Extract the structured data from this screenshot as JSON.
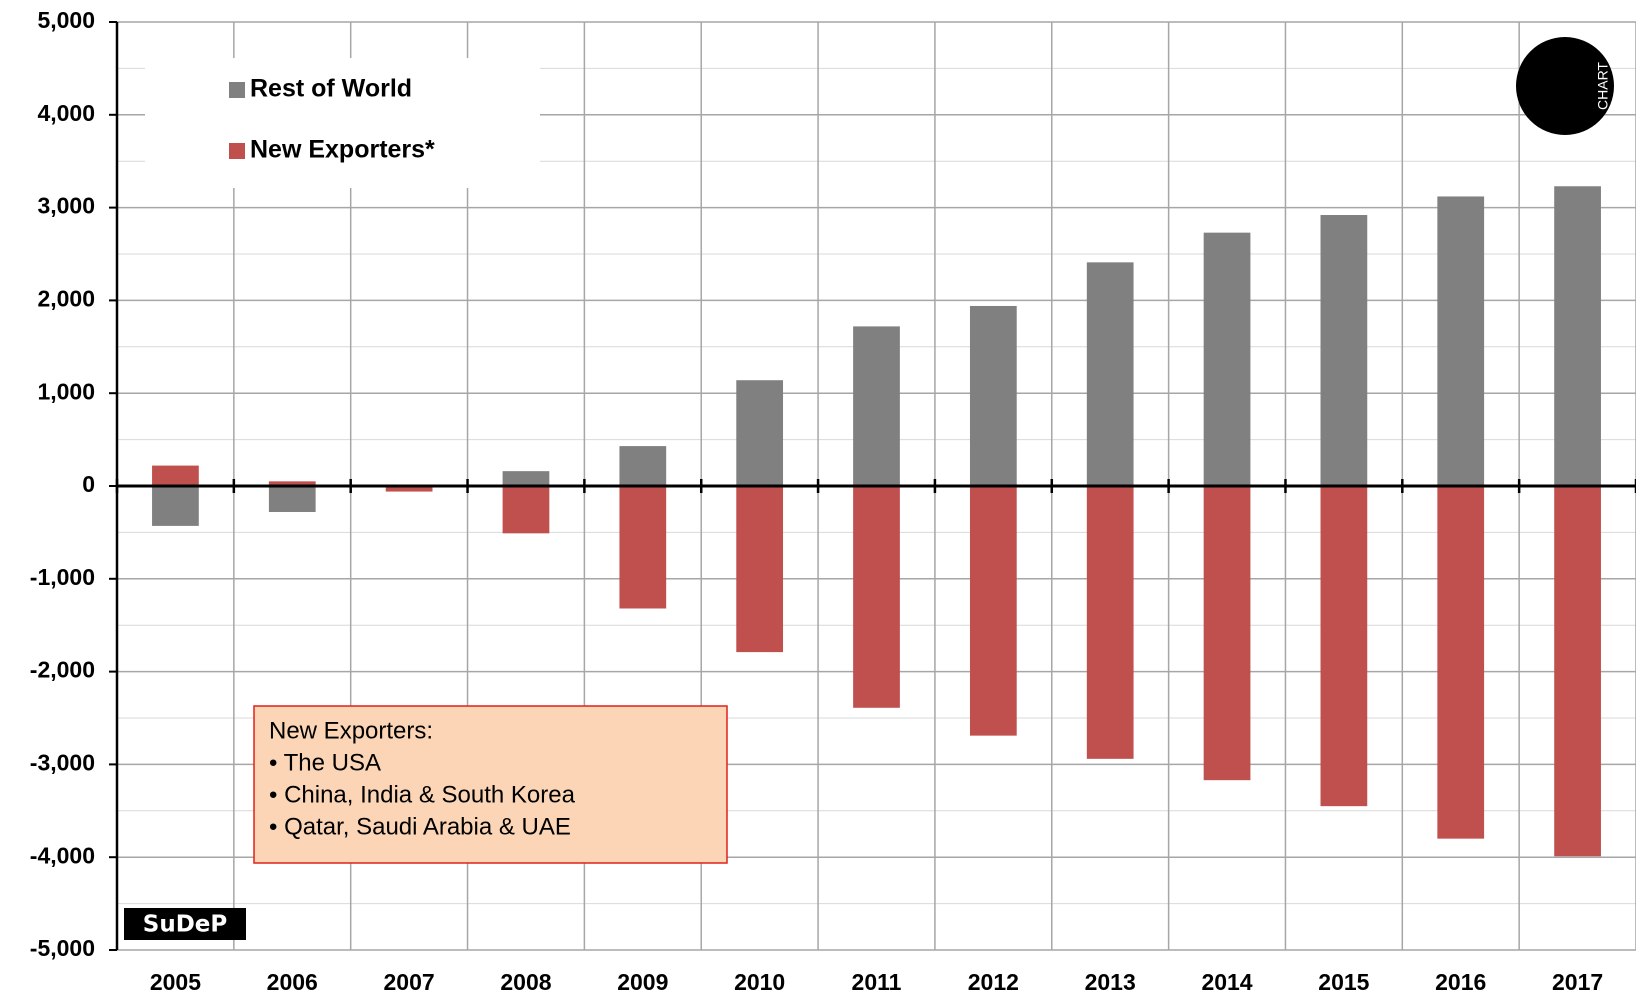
{
  "chart_data": {
    "type": "bar",
    "categories": [
      "2005",
      "2006",
      "2007",
      "2008",
      "2009",
      "2010",
      "2011",
      "2012",
      "2013",
      "2014",
      "2015",
      "2016",
      "2017"
    ],
    "series": [
      {
        "name": "Rest of World",
        "color": "#808080",
        "values": [
          -430,
          -280,
          0,
          160,
          430,
          1140,
          1720,
          1940,
          2410,
          2730,
          2920,
          3120,
          3230
        ]
      },
      {
        "name": "New Exporters*",
        "color": "#c0504d",
        "values": [
          220,
          50,
          -60,
          -510,
          -1320,
          -1790,
          -2390,
          -2690,
          -2940,
          -3170,
          -3450,
          -3800,
          -3990
        ]
      }
    ],
    "ylim": [
      -5000,
      5000
    ],
    "yticks": [
      {
        "value": -5000,
        "label": "-5,000"
      },
      {
        "value": -4000,
        "label": "-4,000"
      },
      {
        "value": -3000,
        "label": "-3,000"
      },
      {
        "value": -2000,
        "label": "-2,000"
      },
      {
        "value": -1000,
        "label": "-1,000"
      },
      0,
      {
        "value": 1000,
        "label": "1,000"
      },
      {
        "value": 2000,
        "label": "2,000"
      },
      {
        "value": 3000,
        "label": "3,000"
      },
      {
        "value": 4000,
        "label": "4,000"
      },
      {
        "value": 5000,
        "label": "5,000"
      }
    ],
    "grid": true,
    "legend": "upper left",
    "annotation": [
      "New Exporters:",
      "• The USA",
      "• China, India & South Korea",
      "• Qatar,  Saudi Arabia & UAE"
    ],
    "logos": [
      "SuDeP",
      "CHART"
    ]
  }
}
